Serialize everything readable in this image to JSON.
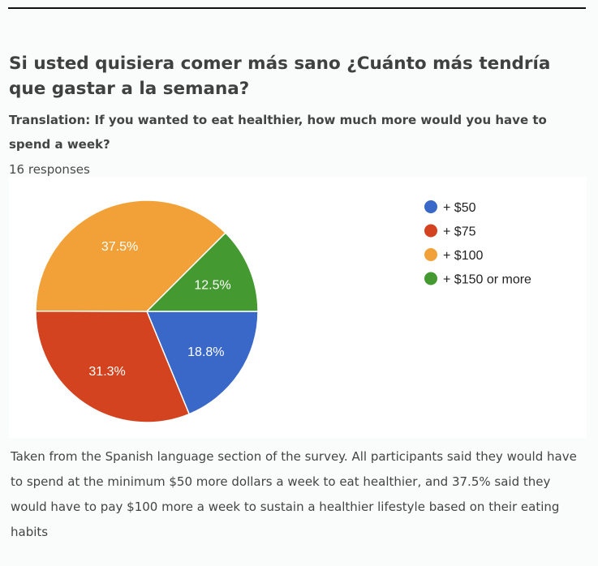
{
  "title": "Si usted quisiera comer más sano ¿Cuánto más tendría que gastar a la semana?",
  "translation": "Translation: If you wanted to eat healthier, how much more would you have to spend a week?",
  "responses": "16 responses",
  "chart_data": {
    "type": "pie",
    "title": "Si usted quisiera comer más sano ¿Cuánto más tendría que gastar a la semana?",
    "total_responses": 16,
    "categories": [
      "+ $50",
      "+ $75",
      "+ $100",
      "+ $150 or more"
    ],
    "values": [
      18.8,
      31.3,
      37.5,
      12.5
    ],
    "labels": [
      "18.8%",
      "31.3%",
      "37.5%",
      "12.5%"
    ],
    "colors": [
      "#3a68c9",
      "#d3431f",
      "#f1a137",
      "#449a31"
    ],
    "legend_position": "right"
  },
  "caption": "Taken from the Spanish language section of the survey. All participants said they would have to spend at the minimum $50 more dollars a week to eat healthier, and 37.5% said they would have to pay $100 more a week to sustain a healthier lifestyle based on their eating habits"
}
